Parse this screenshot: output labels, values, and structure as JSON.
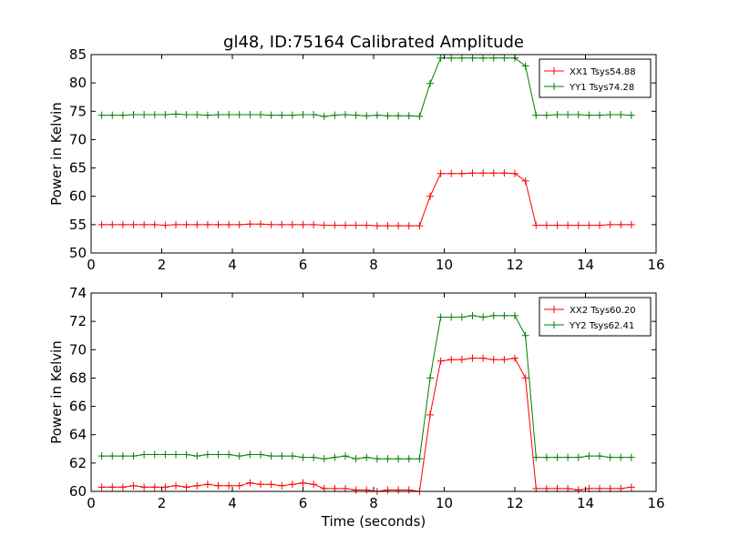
{
  "chart_data": [
    {
      "type": "line",
      "title": "gl48, ID:75164 Calibrated Amplitude",
      "xlabel": "",
      "ylabel": "Power in Kelvin",
      "xlim": [
        0,
        16
      ],
      "ylim": [
        50,
        85
      ],
      "xticks": [
        0,
        2,
        4,
        6,
        8,
        10,
        12,
        14,
        16
      ],
      "yticks": [
        50,
        55,
        60,
        65,
        70,
        75,
        80,
        85
      ],
      "legend_position": "top-right",
      "x": [
        0.3,
        0.6,
        0.9,
        1.2,
        1.5,
        1.8,
        2.1,
        2.4,
        2.7,
        3.0,
        3.3,
        3.6,
        3.9,
        4.2,
        4.5,
        4.8,
        5.1,
        5.4,
        5.7,
        6.0,
        6.3,
        6.6,
        6.9,
        7.2,
        7.5,
        7.8,
        8.1,
        8.4,
        8.7,
        9.0,
        9.3,
        9.6,
        9.9,
        10.2,
        10.5,
        10.8,
        11.1,
        11.4,
        11.7,
        12.0,
        12.3,
        12.6,
        12.9,
        13.2,
        13.5,
        13.8,
        14.1,
        14.4,
        14.7,
        15.0,
        15.3
      ],
      "series": [
        {
          "name": "XX1 Tsys54.88",
          "color": "#ff0000",
          "values": [
            55.0,
            55.0,
            55.0,
            55.0,
            55.0,
            55.0,
            54.9,
            55.0,
            55.0,
            55.0,
            55.0,
            55.0,
            55.0,
            55.0,
            55.1,
            55.1,
            55.0,
            55.0,
            55.0,
            55.0,
            55.0,
            54.9,
            54.9,
            54.9,
            54.9,
            54.9,
            54.8,
            54.8,
            54.8,
            54.8,
            54.8,
            60.0,
            64.0,
            64.0,
            64.0,
            64.1,
            64.1,
            64.1,
            64.1,
            64.0,
            62.7,
            54.9,
            54.9,
            54.9,
            54.9,
            54.9,
            54.9,
            54.9,
            55.0,
            55.0,
            55.0
          ]
        },
        {
          "name": "YY1 Tsys74.28",
          "color": "#008000",
          "values": [
            74.3,
            74.3,
            74.3,
            74.4,
            74.4,
            74.4,
            74.4,
            74.5,
            74.4,
            74.4,
            74.3,
            74.4,
            74.4,
            74.4,
            74.4,
            74.4,
            74.3,
            74.3,
            74.3,
            74.4,
            74.4,
            74.1,
            74.3,
            74.4,
            74.3,
            74.2,
            74.3,
            74.2,
            74.2,
            74.2,
            74.1,
            79.9,
            84.4,
            84.4,
            84.4,
            84.4,
            84.4,
            84.4,
            84.4,
            84.4,
            83.0,
            74.3,
            74.3,
            74.4,
            74.4,
            74.4,
            74.3,
            74.3,
            74.4,
            74.4,
            74.3
          ]
        }
      ]
    },
    {
      "type": "line",
      "title": "",
      "xlabel": "Time (seconds)",
      "ylabel": "Power in Kelvin",
      "xlim": [
        0,
        16
      ],
      "ylim": [
        60,
        74
      ],
      "xticks": [
        0,
        2,
        4,
        6,
        8,
        10,
        12,
        14,
        16
      ],
      "yticks": [
        60,
        62,
        64,
        66,
        68,
        70,
        72,
        74
      ],
      "legend_position": "top-right",
      "x": [
        0.3,
        0.6,
        0.9,
        1.2,
        1.5,
        1.8,
        2.1,
        2.4,
        2.7,
        3.0,
        3.3,
        3.6,
        3.9,
        4.2,
        4.5,
        4.8,
        5.1,
        5.4,
        5.7,
        6.0,
        6.3,
        6.6,
        6.9,
        7.2,
        7.5,
        7.8,
        8.1,
        8.4,
        8.7,
        9.0,
        9.3,
        9.6,
        9.9,
        10.2,
        10.5,
        10.8,
        11.1,
        11.4,
        11.7,
        12.0,
        12.3,
        12.6,
        12.9,
        13.2,
        13.5,
        13.8,
        14.1,
        14.4,
        14.7,
        15.0,
        15.3
      ],
      "series": [
        {
          "name": "XX2 Tsys60.20",
          "color": "#ff0000",
          "values": [
            60.3,
            60.3,
            60.3,
            60.4,
            60.3,
            60.3,
            60.3,
            60.4,
            60.3,
            60.4,
            60.5,
            60.4,
            60.4,
            60.4,
            60.6,
            60.5,
            60.5,
            60.4,
            60.5,
            60.6,
            60.5,
            60.2,
            60.2,
            60.2,
            60.1,
            60.1,
            60.0,
            60.1,
            60.1,
            60.1,
            60.0,
            65.4,
            69.2,
            69.3,
            69.3,
            69.4,
            69.4,
            69.3,
            69.3,
            69.4,
            68.0,
            60.2,
            60.2,
            60.2,
            60.2,
            60.1,
            60.2,
            60.2,
            60.2,
            60.2,
            60.3
          ]
        },
        {
          "name": "YY2 Tsys62.41",
          "color": "#008000",
          "values": [
            62.5,
            62.5,
            62.5,
            62.5,
            62.6,
            62.6,
            62.6,
            62.6,
            62.6,
            62.5,
            62.6,
            62.6,
            62.6,
            62.5,
            62.6,
            62.6,
            62.5,
            62.5,
            62.5,
            62.4,
            62.4,
            62.3,
            62.4,
            62.5,
            62.3,
            62.4,
            62.3,
            62.3,
            62.3,
            62.3,
            62.3,
            68.0,
            72.3,
            72.3,
            72.3,
            72.4,
            72.3,
            72.4,
            72.4,
            72.4,
            71.0,
            62.4,
            62.4,
            62.4,
            62.4,
            62.4,
            62.5,
            62.5,
            62.4,
            62.4,
            62.4
          ]
        }
      ]
    }
  ]
}
